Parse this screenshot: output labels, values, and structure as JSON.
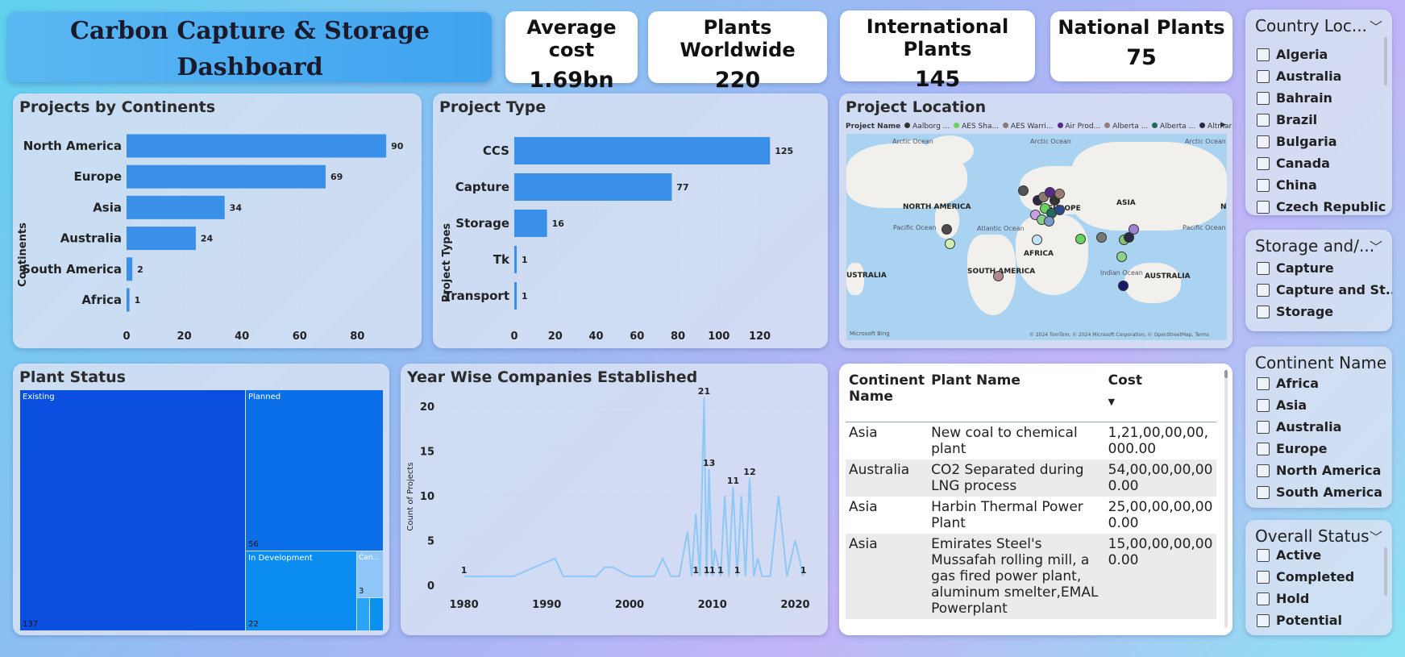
{
  "dashboard": {
    "title_line1": "Carbon Capture & Storage",
    "title_line2": "Dashboard"
  },
  "kpis": [
    {
      "label": "Average cost",
      "value": "1.69bn"
    },
    {
      "label": "Plants Worldwide",
      "value": "220"
    },
    {
      "label": "International Plants",
      "value": "145"
    },
    {
      "label": "National Plants",
      "value": "75"
    }
  ],
  "continents_chart": {
    "title": "Projects by Continents",
    "ylabel": "Continents",
    "categories": [
      "North America",
      "Europe",
      "Asia",
      "Australia",
      "South America",
      "Africa"
    ],
    "values": [
      90,
      69,
      34,
      24,
      2,
      1
    ],
    "ticks": [
      "0",
      "20",
      "40",
      "60",
      "80"
    ],
    "xlim": [
      0,
      95
    ]
  },
  "type_chart": {
    "title": "Project Type",
    "ylabel": "Project Types",
    "categories": [
      "CCS",
      "Capture",
      "Storage",
      "Tk",
      "Transport"
    ],
    "values": [
      125,
      77,
      16,
      1,
      1
    ],
    "ticks": [
      "0",
      "20",
      "40",
      "60",
      "80",
      "100",
      "120"
    ],
    "xlim": [
      0,
      132
    ]
  },
  "map": {
    "title": "Project Location",
    "legend_title": "Project Name",
    "legend_items": [
      {
        "name": "Aalborg ...",
        "color": "#333333"
      },
      {
        "name": "AES Sha...",
        "color": "#6ad35a"
      },
      {
        "name": "AES Warri...",
        "color": "#8a7a70"
      },
      {
        "name": "Air Prod...",
        "color": "#5a2a8a"
      },
      {
        "name": "Alberta ...",
        "color": "#9a7a78"
      },
      {
        "name": "Alberta ...",
        "color": "#1f6a5a"
      },
      {
        "name": "Altmark ...",
        "color": "#2a2a44"
      }
    ],
    "ocean_labels": [
      "Arctic Ocean",
      "Arctic Ocean",
      "Arctic Ocean",
      "Pacific Ocean",
      "Atlantic Ocean",
      "Indian Ocean",
      "Pacific Ocean"
    ],
    "continent_labels": [
      "NORTH AMERICA",
      "EUROPE",
      "ASIA",
      "AFRICA",
      "SOUTH AMERICA",
      "AUSTRALIA",
      "USTRALIA",
      "N"
    ],
    "attribution": "© 2024 TomTom, © 2024 Microsoft Corporation, © OpenStreetMap, Terms",
    "logo": "Microsoft Bing"
  },
  "country_slicer": {
    "title": "Country Loc...",
    "items": [
      "Algeria",
      "Australia",
      "Bahrain",
      "Brazil",
      "Bulgaria",
      "Canada",
      "China",
      "Czech Republic"
    ]
  },
  "storage_slicer": {
    "title": "Storage and/...",
    "items": [
      "Capture",
      "Capture and St...",
      "Storage"
    ]
  },
  "continent_slicer": {
    "title": "Continent Name",
    "items": [
      "Africa",
      "Asia",
      "Australia",
      "Europe",
      "North America",
      "South America"
    ]
  },
  "status_slicer": {
    "title": "Overall Status",
    "items": [
      "Active",
      "Completed",
      "Hold",
      "Potential"
    ]
  },
  "plant_status": {
    "title": "Plant Status",
    "blocks": [
      {
        "label": "Existing",
        "value": "137"
      },
      {
        "label": "Planned",
        "value": "56"
      },
      {
        "label": "In Development",
        "value": "22"
      },
      {
        "label": "Can...",
        "value": "3"
      }
    ]
  },
  "year_chart": {
    "title": "Year Wise Companies Established",
    "ylabel": "Count of Projects",
    "x_ticks": [
      "1980",
      "1990",
      "2000",
      "2010",
      "2020"
    ],
    "y_ticks": [
      "0",
      "5",
      "10",
      "15",
      "20"
    ],
    "xlim": [
      1978,
      2022
    ],
    "ylim": [
      0,
      21
    ],
    "labels": [
      "1",
      "21",
      "13",
      "11",
      "12",
      "1",
      "1",
      "1",
      "1",
      "1",
      "1"
    ]
  },
  "chart_data": [
    {
      "type": "bar",
      "title": "Projects by Continents",
      "ylabel": "Continents",
      "categories": [
        "North America",
        "Europe",
        "Asia",
        "Australia",
        "South America",
        "Africa"
      ],
      "values": [
        90,
        69,
        34,
        24,
        2,
        1
      ]
    },
    {
      "type": "bar",
      "title": "Project Type",
      "ylabel": "Project Types",
      "categories": [
        "CCS",
        "Capture",
        "Storage",
        "Tk",
        "Transport"
      ],
      "values": [
        125,
        77,
        16,
        1,
        1
      ]
    },
    {
      "type": "line",
      "title": "Year Wise Companies Established",
      "ylabel": "Count of Projects",
      "x": [
        1980,
        1986,
        1991,
        1992,
        1996,
        1997,
        1998,
        2000,
        2003,
        2004,
        2005,
        2006,
        2007,
        2007.5,
        2008,
        2008.5,
        2009,
        2009.3,
        2009.6,
        2010,
        2010.3,
        2011,
        2011.5,
        2012,
        2012.5,
        2013,
        2013.5,
        2014,
        2014.5,
        2015,
        2015.5,
        2016,
        2017,
        2018,
        2019,
        2020,
        2020.5,
        2021
      ],
      "y": [
        1,
        1,
        3,
        1,
        1,
        2,
        2,
        1,
        1,
        3,
        1,
        1,
        6,
        1,
        8,
        1,
        21,
        1,
        13,
        1,
        4,
        1,
        10,
        1,
        11,
        1,
        10,
        1,
        12,
        1,
        3,
        1,
        1,
        10,
        1,
        5,
        3,
        1
      ]
    }
  ],
  "table": {
    "headers": [
      "Continent Name",
      "Plant Name",
      "Cost"
    ],
    "rows": [
      {
        "continent": "Asia",
        "plant": "New coal to chemical plant",
        "cost": "1,21,00,00,00,000.00"
      },
      {
        "continent": "Australia",
        "plant": "CO2 Separated during LNG process",
        "cost": "54,00,00,00,000.00"
      },
      {
        "continent": "Asia",
        "plant": "Harbin Thermal Power Plant",
        "cost": "25,00,00,00,000.00"
      },
      {
        "continent": "Asia",
        "plant": "Emirates Steel's Mussafah rolling mill, a gas fired power plant, aluminum smelter,EMAL Powerplant",
        "cost": "15,00,00,00,000.00"
      }
    ]
  }
}
